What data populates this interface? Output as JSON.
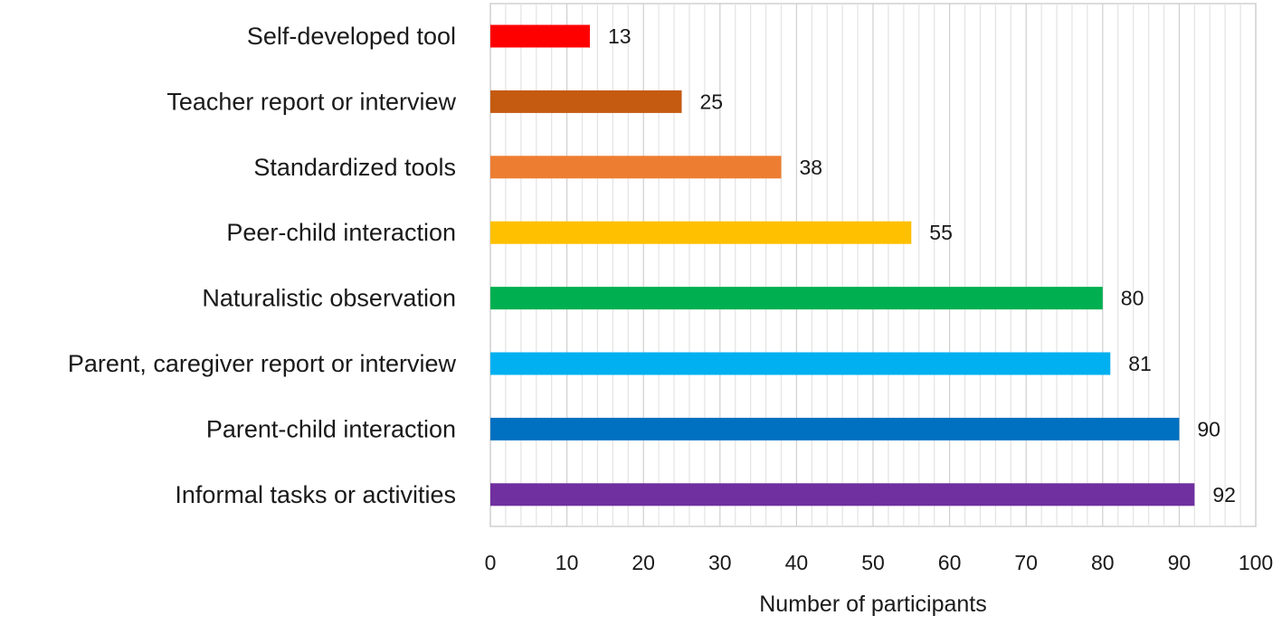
{
  "chart_data": {
    "type": "bar",
    "orientation": "horizontal",
    "categories": [
      "Self-developed tool",
      "Teacher report or interview",
      "Standardized tools",
      "Peer-child interaction",
      "Naturalistic observation",
      "Parent, caregiver report or interview",
      "Parent-child interaction",
      "Informal tasks or activities"
    ],
    "values": [
      13,
      25,
      38,
      55,
      80,
      81,
      90,
      92
    ],
    "colors": [
      "#ff0000",
      "#c55a11",
      "#ed7d31",
      "#ffc000",
      "#00b050",
      "#00b0f0",
      "#0070c0",
      "#7030a0"
    ],
    "data_labels": [
      "13",
      "25",
      "38",
      "55",
      "80",
      "81",
      "90",
      "92"
    ],
    "xlabel": "Number of participants",
    "ylabel": "",
    "xlim": [
      0,
      100
    ],
    "x_ticks": [
      0,
      10,
      20,
      30,
      40,
      50,
      60,
      70,
      80,
      90,
      100
    ],
    "x_tick_labels": [
      "0",
      "10",
      "20",
      "30",
      "40",
      "50",
      "60",
      "70",
      "80",
      "90",
      "100"
    ],
    "minor_grid_step": 2,
    "grid": true,
    "legend": "none"
  }
}
